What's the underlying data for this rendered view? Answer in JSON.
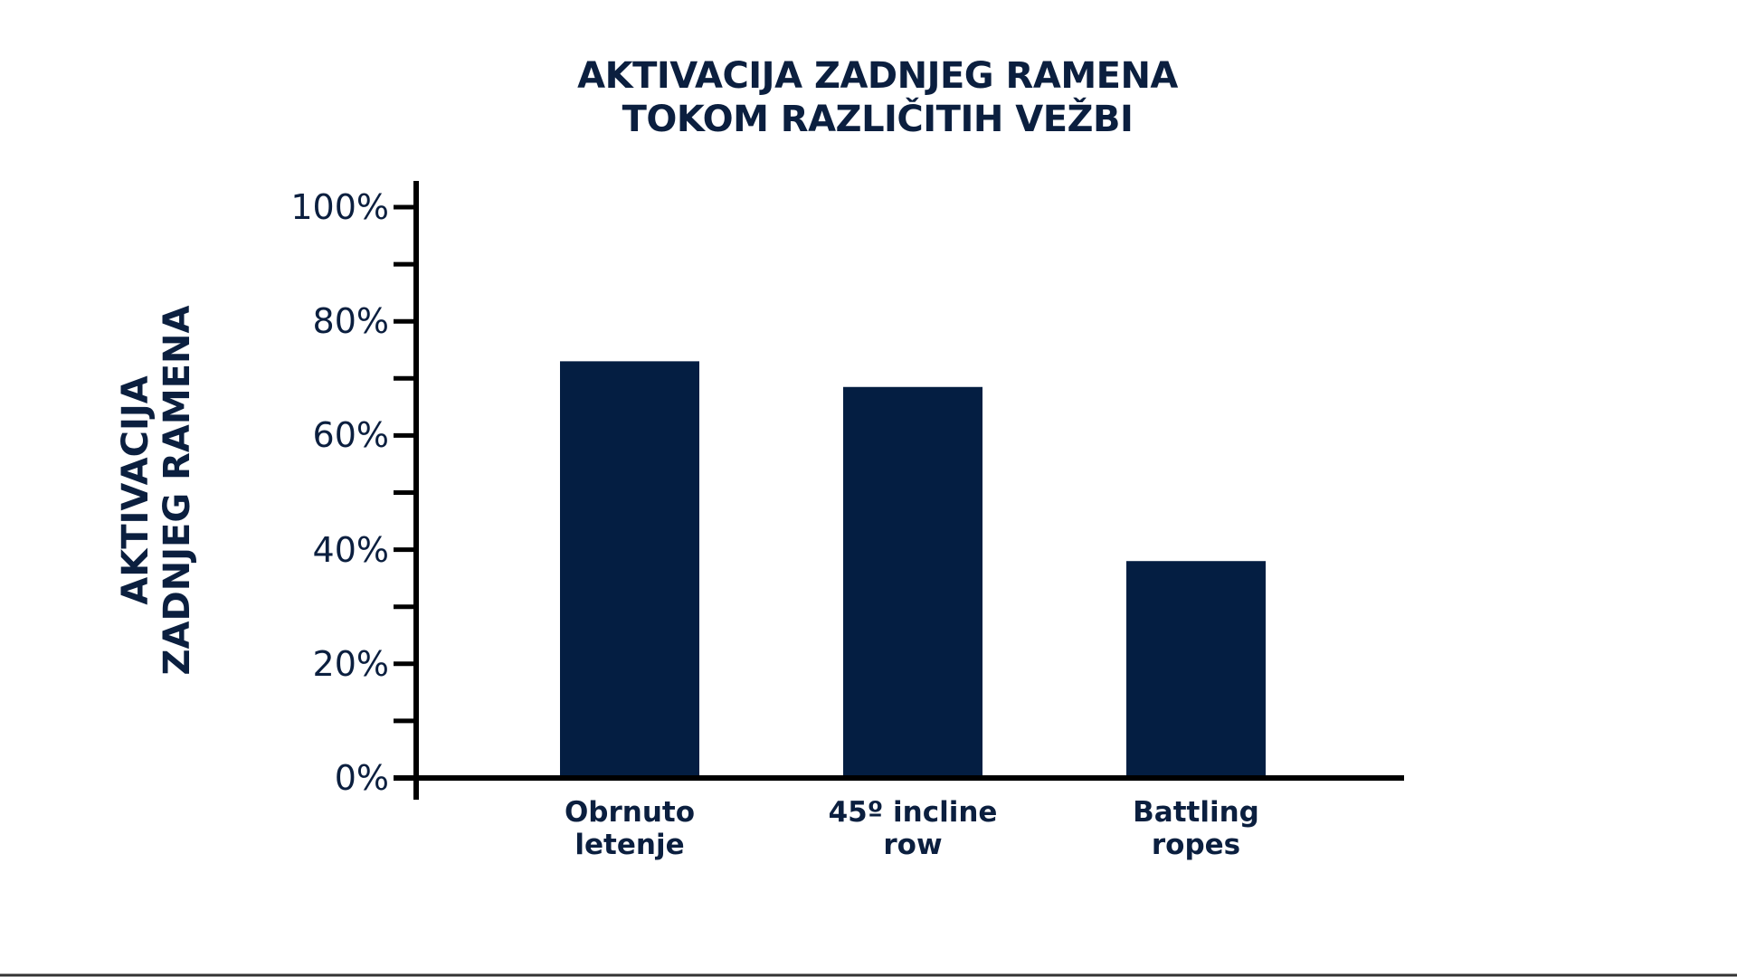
{
  "chart_data": {
    "type": "bar",
    "title": "AKTIVACIJA ZADNJEG RAMENA\nTOKOM RAZLIČITIH VEŽBI",
    "y_label": "AKTIVACIJA\nZADNJEG RAMENA",
    "categories": [
      "Obrnuto\nletenje",
      "45º incline\nrow",
      "Battling\nropes"
    ],
    "values": [
      73,
      68.5,
      38
    ],
    "color": "#041e42",
    "ylim": [
      0,
      100
    ],
    "yticks": [
      {
        "value": 0,
        "label": "0%"
      },
      {
        "value": 20,
        "label": "20%"
      },
      {
        "value": 40,
        "label": "40%"
      },
      {
        "value": 60,
        "label": "60%"
      },
      {
        "value": 80,
        "label": "80%"
      },
      {
        "value": 100,
        "label": "100%"
      }
    ],
    "minor_yticks": [
      10,
      30,
      50,
      70,
      90
    ],
    "grid": false
  }
}
